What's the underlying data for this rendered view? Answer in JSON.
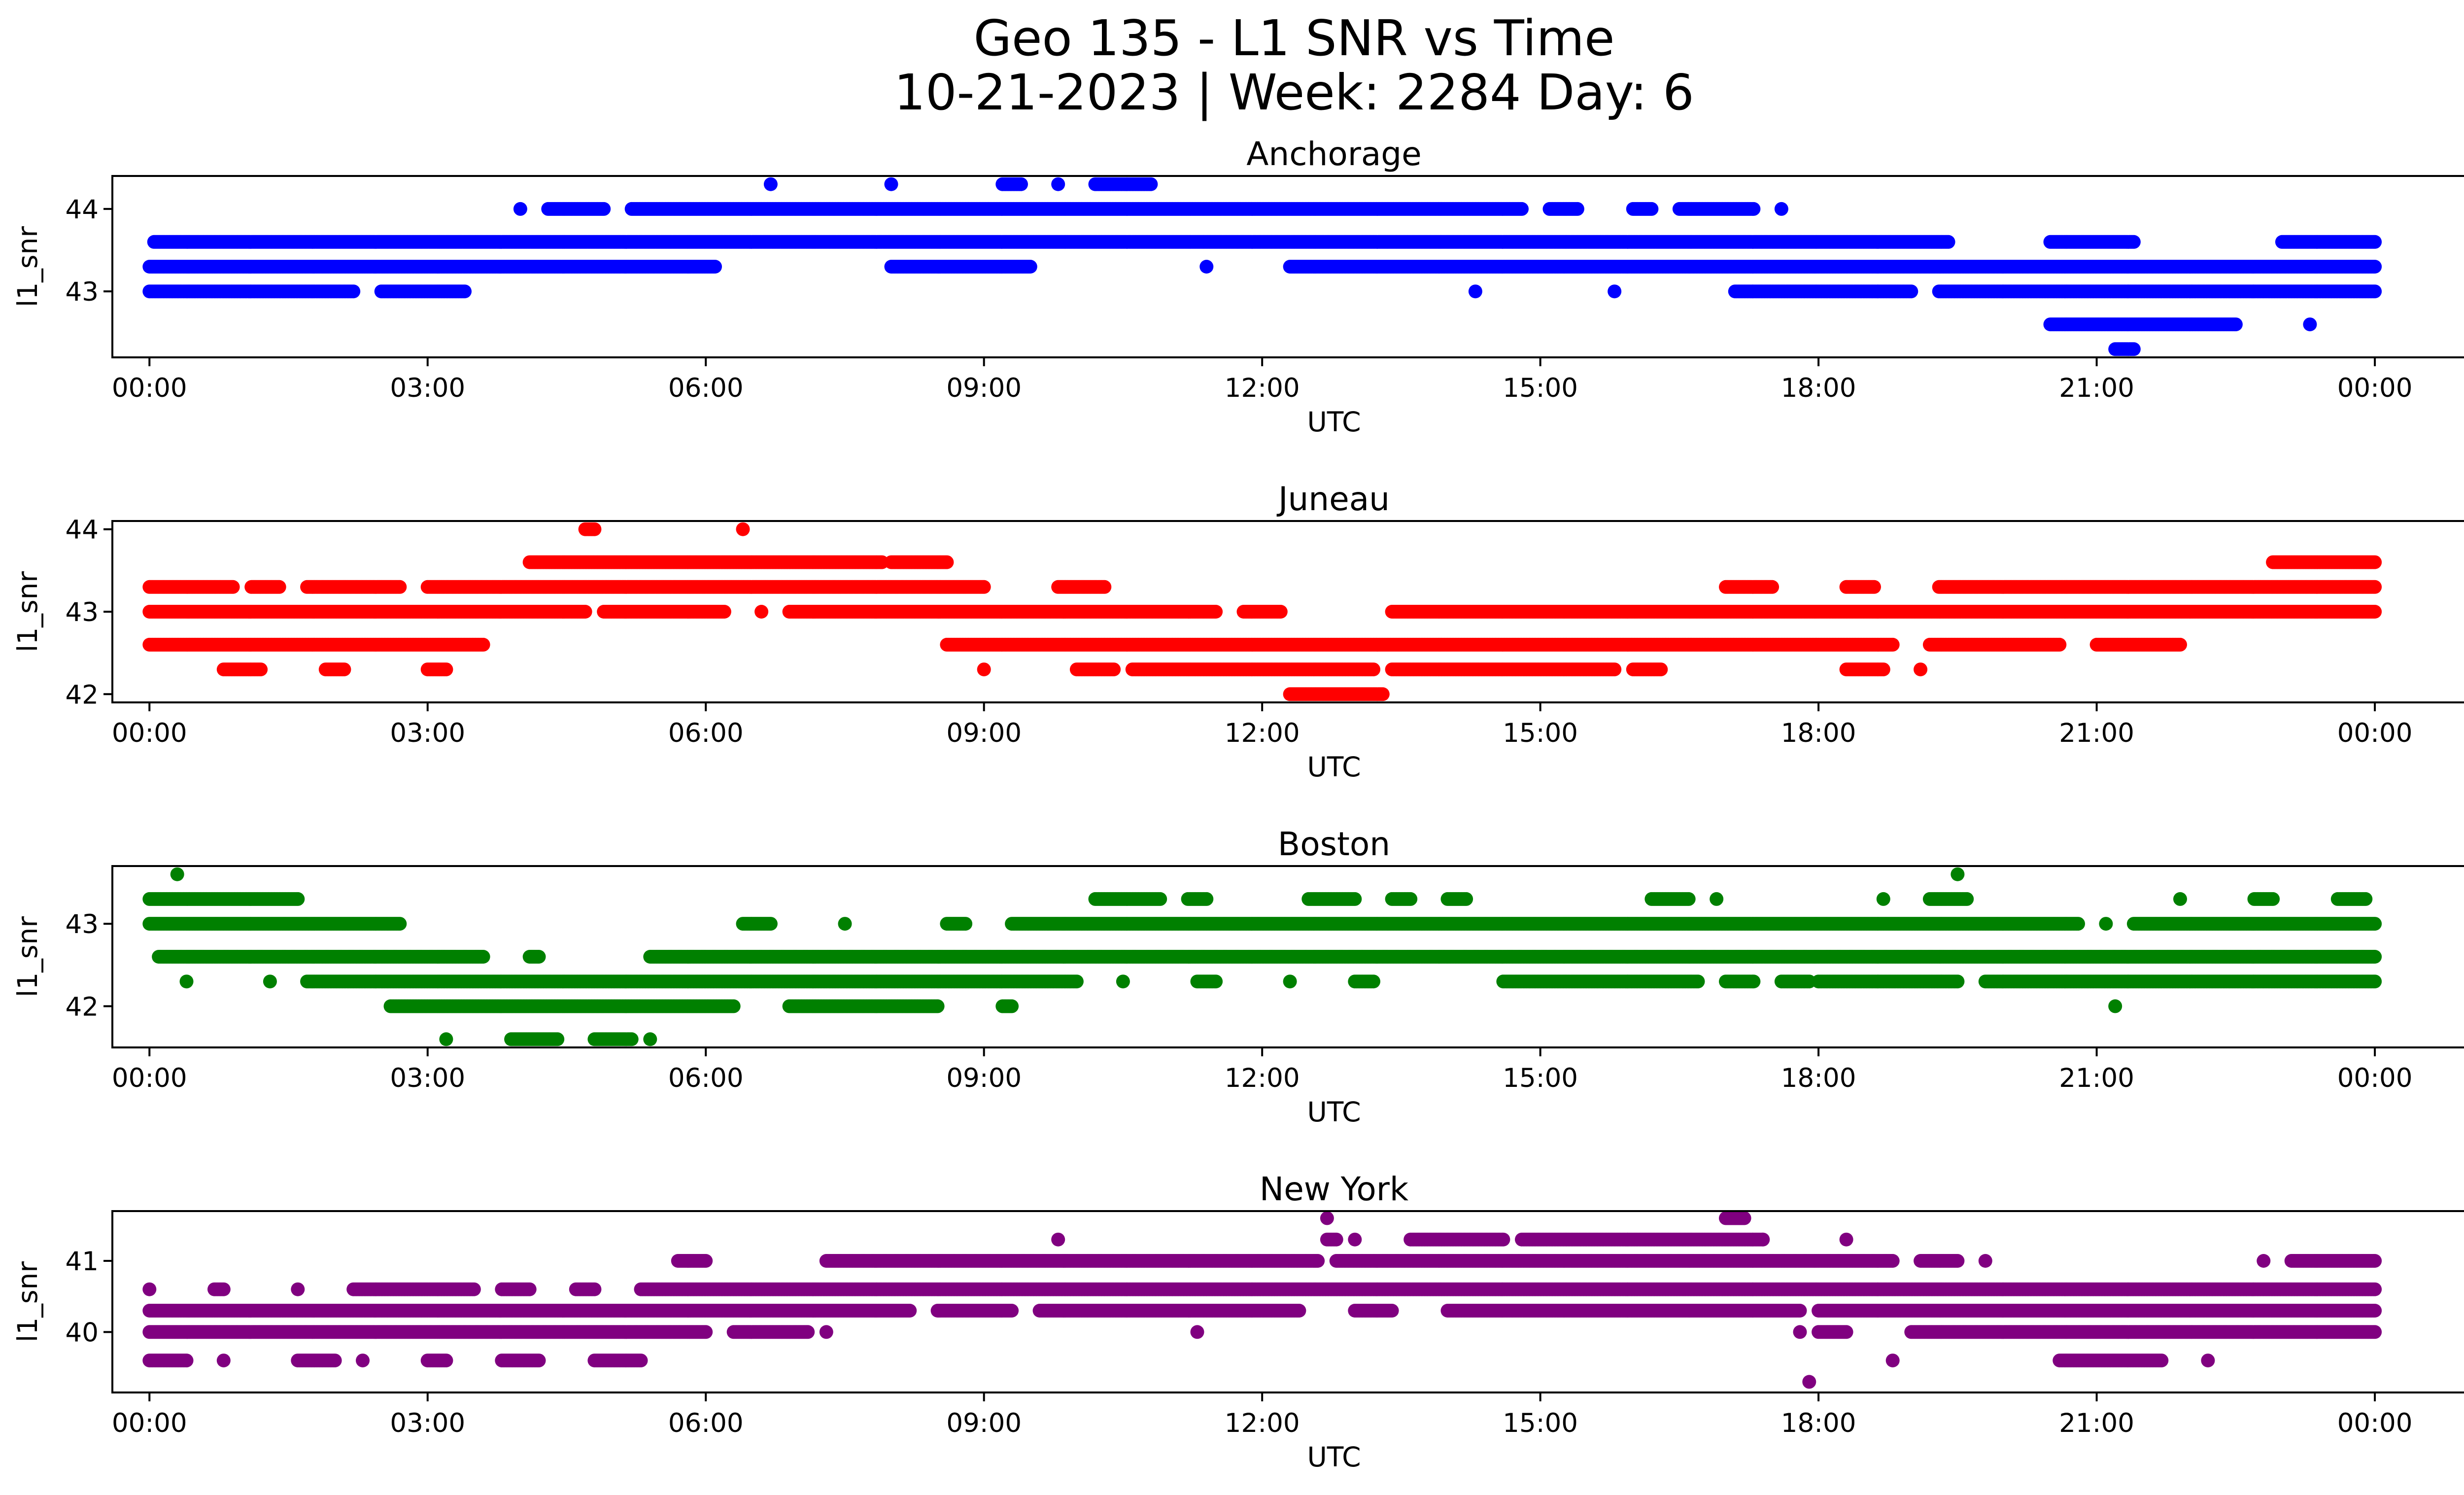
{
  "figure": {
    "title_line1": "Geo 135 - L1 SNR vs Time",
    "title_line2": "10-21-2023 | Week: 2284 Day: 6"
  },
  "chart_data": [
    {
      "type": "scatter",
      "title": "Anchorage",
      "xlabel": "UTC",
      "ylabel": "l1_snr",
      "color": "#0000ff",
      "x_unit": "hours UTC",
      "xlim": [
        -0.4,
        25.95
      ],
      "ylim": [
        42.2,
        44.4
      ],
      "x_ticks": [
        0,
        3,
        6,
        9,
        12,
        15,
        18,
        21,
        24
      ],
      "x_tick_labels": [
        "00:00",
        "03:00",
        "06:00",
        "09:00",
        "12:00",
        "15:00",
        "18:00",
        "21:00",
        "00:00"
      ],
      "y_ticks": [
        43,
        44
      ],
      "y_tick_labels": [
        "43",
        "44"
      ],
      "series": [
        {
          "y": 43.3,
          "segments": [
            [
              0,
              6.1
            ],
            [
              8.0,
              9.5
            ],
            [
              11.4,
              11.4
            ],
            [
              12.3,
              24
            ]
          ]
        },
        {
          "y": 43.6,
          "segments": [
            [
              0.05,
              19.4
            ],
            [
              20.5,
              21.4
            ],
            [
              23.0,
              24
            ]
          ]
        },
        {
          "y": 44.0,
          "segments": [
            [
              4.0,
              4.0
            ],
            [
              4.3,
              4.9
            ],
            [
              5.2,
              14.8
            ],
            [
              15.1,
              15.4
            ],
            [
              16.0,
              16.2
            ],
            [
              16.5,
              17.3
            ],
            [
              17.6,
              17.6
            ]
          ]
        },
        {
          "y": 43.0,
          "segments": [
            [
              0.0,
              2.2
            ],
            [
              2.5,
              3.4
            ],
            [
              14.3,
              14.3
            ],
            [
              15.8,
              15.8
            ],
            [
              17.1,
              19.0
            ],
            [
              19.3,
              24
            ]
          ]
        },
        {
          "y": 44.3,
          "segments": [
            [
              6.7,
              6.7
            ],
            [
              8.0,
              8.0
            ],
            [
              9.2,
              9.4
            ],
            [
              9.8,
              9.8
            ],
            [
              10.2,
              10.8
            ]
          ]
        },
        {
          "y": 42.6,
          "segments": [
            [
              20.5,
              22.5
            ],
            [
              23.3,
              23.3
            ]
          ]
        },
        {
          "y": 42.3,
          "segments": [
            [
              21.2,
              21.4
            ]
          ]
        }
      ]
    },
    {
      "type": "scatter",
      "title": "Juneau",
      "xlabel": "UTC",
      "ylabel": "l1_snr",
      "color": "#ff0000",
      "x_unit": "hours UTC",
      "xlim": [
        -0.4,
        25.95
      ],
      "ylim": [
        41.9,
        44.1
      ],
      "x_ticks": [
        0,
        3,
        6,
        9,
        12,
        15,
        18,
        21,
        24
      ],
      "x_tick_labels": [
        "00:00",
        "03:00",
        "06:00",
        "09:00",
        "12:00",
        "15:00",
        "18:00",
        "21:00",
        "00:00"
      ],
      "y_ticks": [
        42,
        43,
        44
      ],
      "y_tick_labels": [
        "42",
        "43",
        "44"
      ],
      "series": [
        {
          "y": 43.0,
          "segments": [
            [
              0,
              4.7
            ],
            [
              4.9,
              6.2
            ],
            [
              6.6,
              6.6
            ],
            [
              6.9,
              11.5
            ],
            [
              11.8,
              12.2
            ],
            [
              13.4,
              24
            ]
          ]
        },
        {
          "y": 42.6,
          "segments": [
            [
              0,
              3.6
            ],
            [
              8.6,
              18.8
            ],
            [
              19.2,
              20.6
            ],
            [
              21.0,
              21.9
            ]
          ]
        },
        {
          "y": 43.3,
          "segments": [
            [
              0,
              0.9
            ],
            [
              1.1,
              1.4
            ],
            [
              1.7,
              2.7
            ],
            [
              3.0,
              9.0
            ],
            [
              9.8,
              10.3
            ],
            [
              17.0,
              17.5
            ],
            [
              18.3,
              18.6
            ],
            [
              19.3,
              24
            ]
          ]
        },
        {
          "y": 43.6,
          "segments": [
            [
              4.1,
              7.9
            ],
            [
              8.0,
              8.6
            ],
            [
              22.9,
              24
            ]
          ]
        },
        {
          "y": 42.3,
          "segments": [
            [
              0.8,
              1.2
            ],
            [
              1.9,
              2.1
            ],
            [
              3.0,
              3.2
            ],
            [
              9.0,
              9.0
            ],
            [
              10.0,
              10.4
            ],
            [
              10.6,
              13.2
            ],
            [
              13.4,
              15.8
            ],
            [
              16.0,
              16.3
            ],
            [
              18.3,
              18.7
            ],
            [
              19.1,
              19.1
            ]
          ]
        },
        {
          "y": 42.0,
          "segments": [
            [
              12.3,
              13.3
            ]
          ]
        },
        {
          "y": 44.0,
          "segments": [
            [
              4.7,
              4.8
            ],
            [
              6.4,
              6.4
            ]
          ]
        }
      ]
    },
    {
      "type": "scatter",
      "title": "Boston",
      "xlabel": "UTC",
      "ylabel": "l1_snr",
      "color": "#008000",
      "x_unit": "hours UTC",
      "xlim": [
        -0.4,
        25.95
      ],
      "ylim": [
        41.5,
        43.7
      ],
      "x_ticks": [
        0,
        3,
        6,
        9,
        12,
        15,
        18,
        21,
        24
      ],
      "x_tick_labels": [
        "00:00",
        "03:00",
        "06:00",
        "09:00",
        "12:00",
        "15:00",
        "18:00",
        "21:00",
        "00:00"
      ],
      "y_ticks": [
        42,
        43
      ],
      "y_tick_labels": [
        "42",
        "43"
      ],
      "series": [
        {
          "y": 43.3,
          "segments": [
            [
              0,
              1.6
            ],
            [
              10.2,
              10.9
            ],
            [
              11.2,
              11.4
            ],
            [
              12.5,
              13.0
            ],
            [
              13.4,
              13.6
            ],
            [
              14.0,
              14.2
            ],
            [
              16.2,
              16.6
            ],
            [
              16.9,
              16.9
            ],
            [
              18.7,
              18.7
            ],
            [
              19.2,
              19.6
            ],
            [
              21.9,
              21.9
            ],
            [
              22.7,
              22.9
            ],
            [
              23.6,
              23.9
            ]
          ]
        },
        {
          "y": 43.0,
          "segments": [
            [
              0,
              2.7
            ],
            [
              6.4,
              6.7
            ],
            [
              7.5,
              7.5
            ],
            [
              8.6,
              8.8
            ],
            [
              9.3,
              20.8
            ],
            [
              21.1,
              21.1
            ],
            [
              21.4,
              24
            ]
          ]
        },
        {
          "y": 42.6,
          "segments": [
            [
              0.1,
              3.6
            ],
            [
              4.1,
              4.2
            ],
            [
              5.4,
              24
            ]
          ]
        },
        {
          "y": 42.3,
          "segments": [
            [
              0.4,
              0.4
            ],
            [
              1.3,
              1.3
            ],
            [
              1.7,
              10.0
            ],
            [
              10.5,
              10.5
            ],
            [
              11.3,
              11.5
            ],
            [
              12.3,
              12.3
            ],
            [
              13.0,
              13.2
            ],
            [
              14.6,
              16.7
            ],
            [
              17.0,
              17.3
            ],
            [
              17.6,
              17.9
            ],
            [
              18.0,
              19.5
            ],
            [
              19.8,
              24
            ]
          ]
        },
        {
          "y": 42.0,
          "segments": [
            [
              2.6,
              6.3
            ],
            [
              6.9,
              8.5
            ],
            [
              9.2,
              9.3
            ],
            [
              21.2,
              21.2
            ]
          ]
        },
        {
          "y": 41.6,
          "segments": [
            [
              3.2,
              3.2
            ],
            [
              3.9,
              4.4
            ],
            [
              4.8,
              5.2
            ],
            [
              5.4,
              5.4
            ]
          ]
        },
        {
          "y": 43.6,
          "segments": [
            [
              0.3,
              0.3
            ],
            [
              19.5,
              19.5
            ]
          ]
        }
      ]
    },
    {
      "type": "scatter",
      "title": "New York",
      "xlabel": "UTC",
      "ylabel": "l1_snr",
      "color": "#800080",
      "x_unit": "hours UTC",
      "xlim": [
        -0.4,
        25.95
      ],
      "ylim": [
        39.15,
        41.7
      ],
      "x_ticks": [
        0,
        3,
        6,
        9,
        12,
        15,
        18,
        21,
        24
      ],
      "x_tick_labels": [
        "00:00",
        "03:00",
        "06:00",
        "09:00",
        "12:00",
        "15:00",
        "18:00",
        "21:00",
        "00:00"
      ],
      "y_ticks": [
        40,
        41
      ],
      "y_tick_labels": [
        "40",
        "41"
      ],
      "series": [
        {
          "y": 40.3,
          "segments": [
            [
              0,
              8.2
            ],
            [
              8.5,
              9.3
            ],
            [
              9.6,
              12.4
            ],
            [
              13.0,
              13.4
            ],
            [
              14.0,
              17.8
            ],
            [
              18.0,
              24
            ]
          ]
        },
        {
          "y": 40.0,
          "segments": [
            [
              0,
              6.0
            ],
            [
              6.3,
              7.1
            ],
            [
              7.3,
              7.3
            ],
            [
              11.3,
              11.3
            ],
            [
              17.8,
              17.8
            ],
            [
              18.0,
              18.3
            ],
            [
              19.0,
              24
            ]
          ]
        },
        {
          "y": 40.6,
          "segments": [
            [
              0,
              0
            ],
            [
              0.7,
              0.8
            ],
            [
              1.6,
              1.6
            ],
            [
              2.2,
              3.5
            ],
            [
              3.8,
              4.1
            ],
            [
              4.6,
              4.8
            ],
            [
              5.3,
              24
            ]
          ]
        },
        {
          "y": 41.0,
          "segments": [
            [
              5.7,
              6.0
            ],
            [
              7.3,
              12.6
            ],
            [
              12.8,
              18.8
            ],
            [
              19.1,
              19.5
            ],
            [
              19.8,
              19.8
            ],
            [
              22.8,
              22.8
            ],
            [
              23.1,
              24
            ]
          ]
        },
        {
          "y": 39.6,
          "segments": [
            [
              0,
              0.4
            ],
            [
              0.8,
              0.8
            ],
            [
              1.6,
              2.0
            ],
            [
              2.3,
              2.3
            ],
            [
              3.0,
              3.2
            ],
            [
              3.8,
              4.2
            ],
            [
              4.8,
              5.3
            ],
            [
              18.8,
              18.8
            ],
            [
              20.6,
              21.7
            ],
            [
              22.2,
              22.2
            ]
          ]
        },
        {
          "y": 41.3,
          "segments": [
            [
              9.8,
              9.8
            ],
            [
              12.7,
              12.8
            ],
            [
              13.0,
              13.0
            ],
            [
              13.6,
              14.6
            ],
            [
              14.8,
              17.4
            ],
            [
              17.4,
              17.4
            ],
            [
              18.3,
              18.3
            ]
          ]
        },
        {
          "y": 41.6,
          "segments": [
            [
              12.7,
              12.7
            ],
            [
              17.0,
              17.2
            ]
          ]
        },
        {
          "y": 39.3,
          "segments": [
            [
              17.9,
              17.9
            ]
          ]
        }
      ]
    }
  ]
}
